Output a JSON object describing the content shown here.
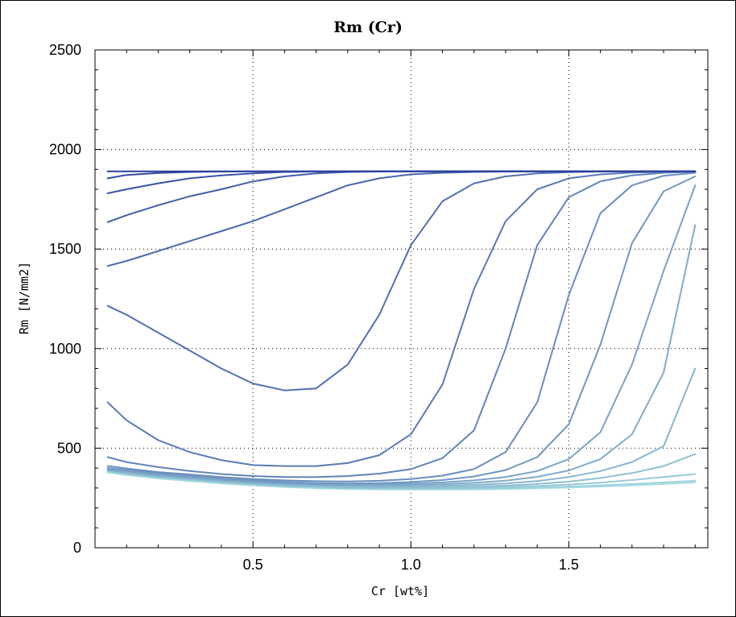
{
  "chart_data": {
    "type": "line",
    "title": "Rm (Cr)",
    "xlabel": "Cr [wt%]",
    "ylabel": "Rm [N/mm2]",
    "xlim": [
      0.0,
      1.94
    ],
    "ylim": [
      0,
      2500
    ],
    "xticks": [
      0.5,
      1.0,
      1.5
    ],
    "xtick_labels": [
      "0.5",
      "1.0",
      "1.5"
    ],
    "yticks": [
      0,
      500,
      1000,
      1500,
      2000,
      2500
    ],
    "ytick_labels": [
      "0",
      "500",
      "1000",
      "1500",
      "2000",
      "2500"
    ],
    "grid": "dotted",
    "legend": "none",
    "colors": {
      "frame": "#000000",
      "grid": "#000000",
      "series_dark": "#2b3f9c",
      "series_light": "#a7dde0"
    },
    "x": [
      0.04,
      0.1,
      0.2,
      0.3,
      0.4,
      0.5,
      0.6,
      0.7,
      0.8,
      0.9,
      1.0,
      1.1,
      1.2,
      1.3,
      1.4,
      1.5,
      1.6,
      1.7,
      1.8,
      1.9
    ],
    "series": [
      {
        "values": [
          1890,
          1890,
          1890,
          1890,
          1890,
          1890,
          1890,
          1890,
          1890,
          1890,
          1890,
          1890,
          1890,
          1890,
          1890,
          1890,
          1890,
          1890,
          1890,
          1890
        ]
      },
      {
        "values": [
          1855,
          1872,
          1882,
          1887,
          1889,
          1890,
          1890,
          1890,
          1890,
          1890,
          1890,
          1890,
          1890,
          1890,
          1890,
          1890,
          1890,
          1890,
          1890,
          1890
        ]
      },
      {
        "values": [
          1780,
          1800,
          1830,
          1855,
          1870,
          1880,
          1887,
          1889,
          1890,
          1890,
          1890,
          1890,
          1890,
          1890,
          1890,
          1890,
          1890,
          1890,
          1890,
          1890
        ]
      },
      {
        "values": [
          1635,
          1670,
          1720,
          1765,
          1800,
          1840,
          1865,
          1880,
          1887,
          1889,
          1890,
          1890,
          1890,
          1890,
          1890,
          1890,
          1890,
          1890,
          1890,
          1890
        ]
      },
      {
        "values": [
          1415,
          1440,
          1490,
          1540,
          1590,
          1640,
          1700,
          1760,
          1820,
          1855,
          1875,
          1883,
          1887,
          1889,
          1890,
          1890,
          1890,
          1890,
          1890,
          1890
        ]
      },
      {
        "values": [
          1215,
          1170,
          1080,
          990,
          900,
          825,
          790,
          800,
          920,
          1170,
          1520,
          1740,
          1830,
          1865,
          1880,
          1886,
          1889,
          1890,
          1890,
          1890
        ]
      },
      {
        "values": [
          730,
          640,
          540,
          480,
          440,
          415,
          410,
          410,
          425,
          465,
          570,
          820,
          1300,
          1640,
          1800,
          1855,
          1875,
          1884,
          1888,
          1890
        ]
      },
      {
        "values": [
          455,
          430,
          405,
          385,
          370,
          360,
          355,
          355,
          360,
          372,
          395,
          450,
          590,
          1000,
          1520,
          1760,
          1840,
          1870,
          1883,
          1888
        ]
      },
      {
        "values": [
          410,
          398,
          380,
          368,
          355,
          345,
          338,
          334,
          333,
          336,
          345,
          362,
          395,
          480,
          730,
          1270,
          1680,
          1820,
          1868,
          1883
        ]
      },
      {
        "values": [
          400,
          390,
          374,
          360,
          348,
          338,
          330,
          325,
          323,
          325,
          330,
          340,
          358,
          390,
          455,
          620,
          1020,
          1530,
          1790,
          1865
        ]
      },
      {
        "values": [
          395,
          385,
          368,
          355,
          343,
          333,
          325,
          320,
          318,
          319,
          322,
          328,
          338,
          355,
          385,
          445,
          580,
          920,
          1390,
          1820
        ]
      },
      {
        "values": [
          392,
          381,
          364,
          351,
          339,
          329,
          321,
          316,
          313,
          313,
          315,
          319,
          326,
          337,
          356,
          388,
          445,
          570,
          880,
          1620
        ]
      },
      {
        "values": [
          390,
          378,
          361,
          348,
          336,
          325,
          317,
          312,
          308,
          307,
          308,
          311,
          316,
          323,
          335,
          355,
          385,
          430,
          510,
          900
        ]
      },
      {
        "values": [
          388,
          375,
          358,
          345,
          333,
          322,
          314,
          308,
          304,
          302,
          302,
          304,
          307,
          312,
          320,
          332,
          350,
          375,
          410,
          470
        ]
      },
      {
        "values": [
          385,
          372,
          355,
          342,
          330,
          319,
          311,
          305,
          301,
          299,
          298,
          299,
          301,
          305,
          310,
          317,
          327,
          340,
          355,
          370
        ]
      },
      {
        "values": [
          382,
          369,
          352,
          339,
          327,
          316,
          308,
          302,
          298,
          296,
          295,
          295,
          296,
          299,
          302,
          307,
          313,
          320,
          328,
          336
        ]
      },
      {
        "values": [
          378,
          365,
          348,
          335,
          323,
          313,
          305,
          299,
          295,
          293,
          292,
          292,
          293,
          295,
          298,
          302,
          307,
          313,
          320,
          328
        ]
      }
    ]
  }
}
